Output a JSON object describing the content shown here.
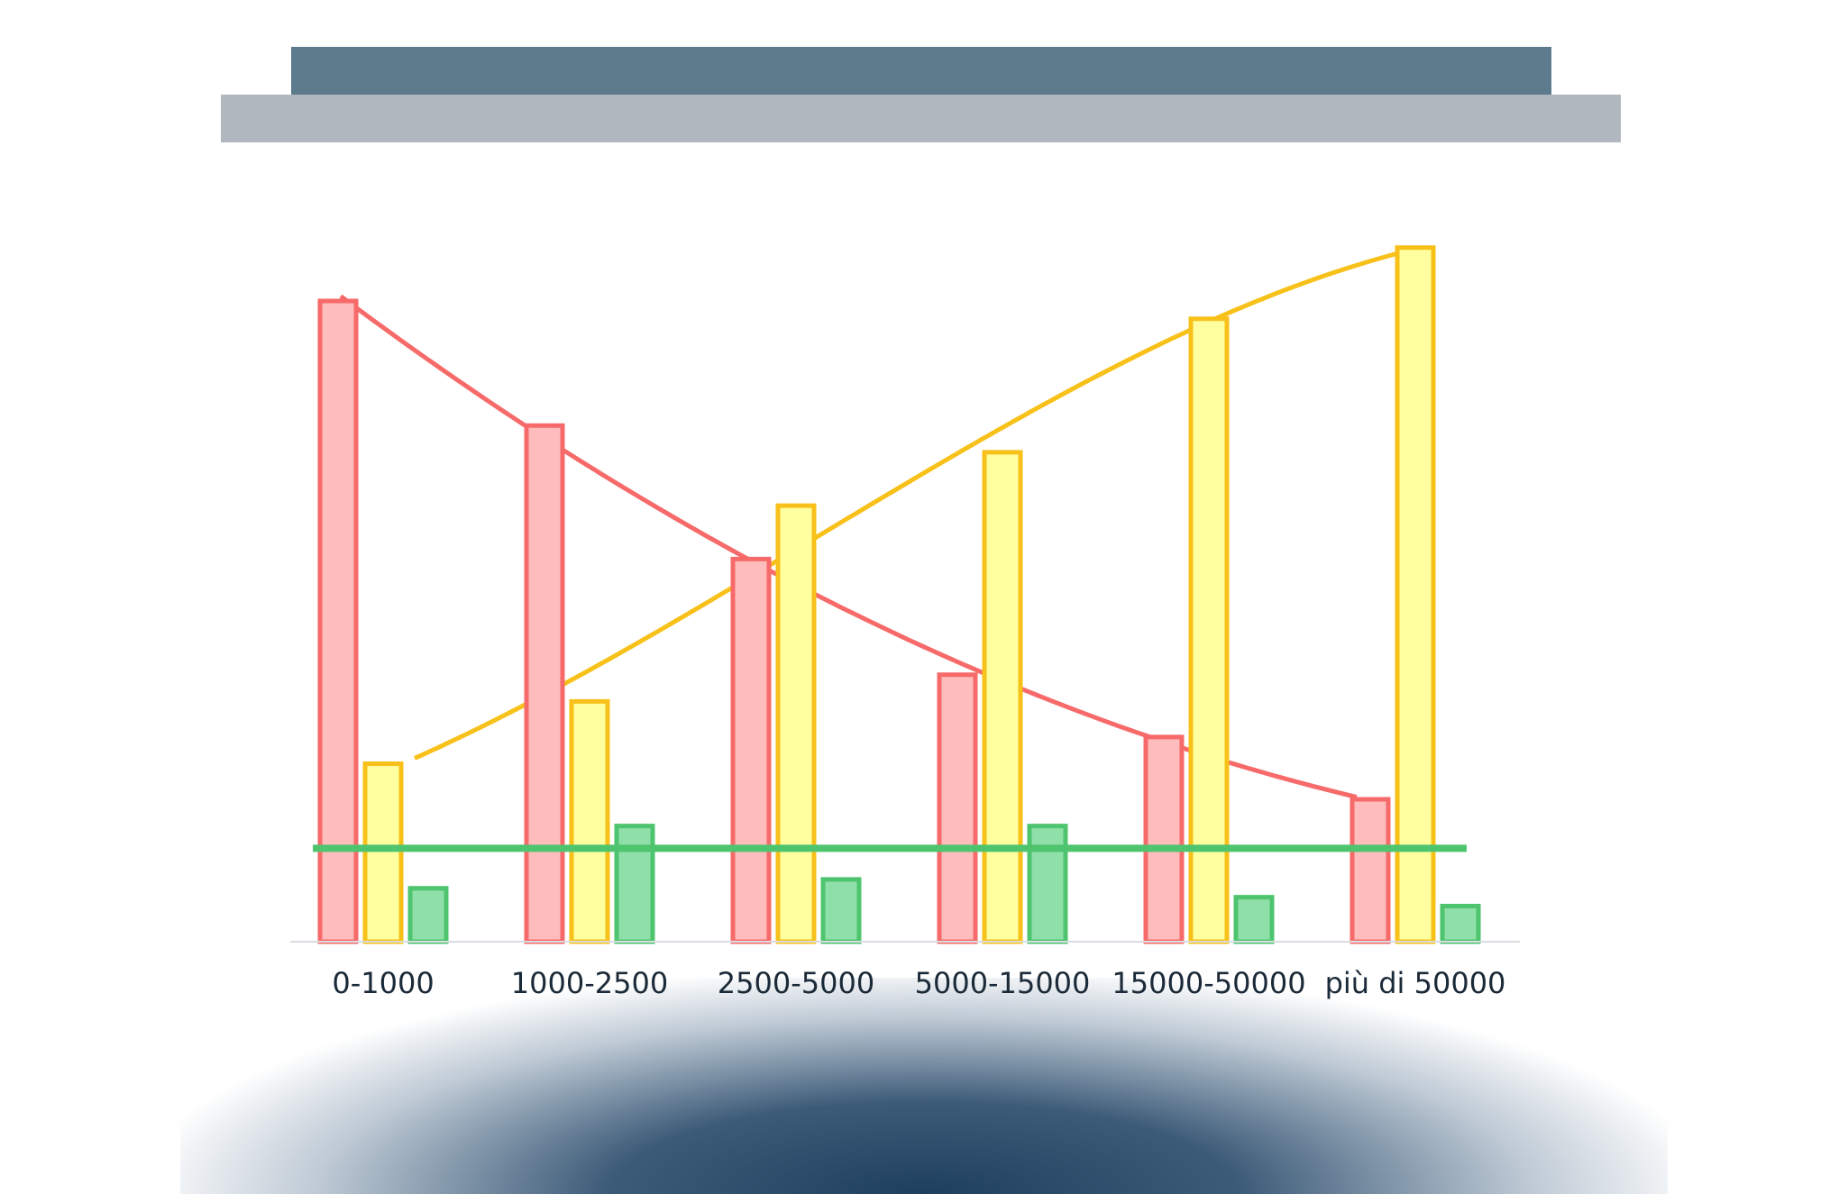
{
  "colors": {
    "series1_fill": "#ffbcbd",
    "series1_stroke": "#f76a6a",
    "series2_fill": "#ffff9f",
    "series2_stroke": "#f7c11a",
    "series3_fill": "#8fdfa9",
    "series3_stroke": "#4ec46e",
    "banner_top": "#5d7b8c",
    "banner_bottom": "#b0b7bf"
  },
  "chart_data": {
    "type": "bar",
    "title": "",
    "xlabel": "",
    "ylabel": "",
    "categories": [
      "0-1000",
      "1000-2500",
      "2500-5000",
      "5000-15000",
      "15000-50000",
      "più di 50000"
    ],
    "series": [
      {
        "values": [
          72,
          58,
          43,
          30,
          23,
          16
        ]
      },
      {
        "values": [
          20,
          27,
          49,
          55,
          70,
          78
        ]
      },
      {
        "values": [
          6,
          13,
          7,
          13,
          5,
          4
        ]
      }
    ],
    "trendlines": [
      {
        "series_index": 0,
        "shape": "curve"
      },
      {
        "series_index": 1,
        "shape": "curve"
      },
      {
        "series_index": 2,
        "shape": "flat",
        "value": 10.5
      }
    ],
    "ylim": [
      0,
      80
    ],
    "grid": false,
    "legend": "none"
  }
}
